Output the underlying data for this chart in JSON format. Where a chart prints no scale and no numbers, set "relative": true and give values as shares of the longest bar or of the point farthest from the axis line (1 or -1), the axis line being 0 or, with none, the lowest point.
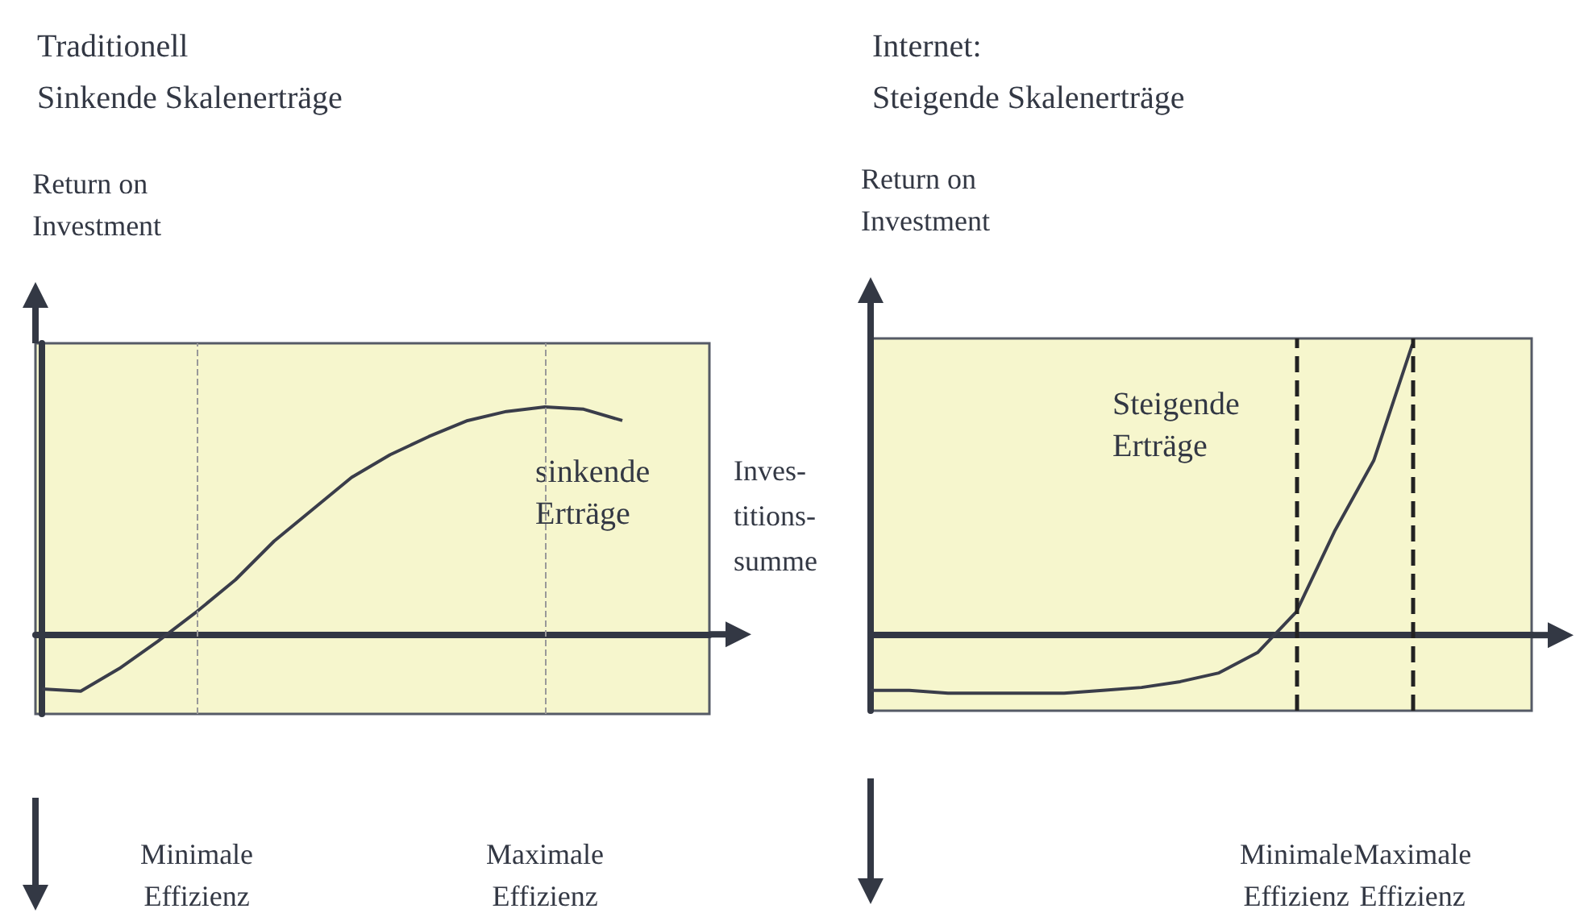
{
  "chart_data": [
    {
      "type": "line",
      "title": "Traditionell",
      "subtitle": "Sinkende Skalenerträge",
      "ylabel": "Return on Investment",
      "xlabel": "Inves-\ntitions-\nsumme",
      "relative": true,
      "categories": [
        null,
        null,
        null,
        null,
        "Minimale Effizienz",
        null,
        null,
        null,
        null,
        null,
        null,
        null,
        null,
        "Maximale Effizienz",
        null,
        null
      ],
      "series": [
        {
          "color": "#3a3d4a",
          "values": [
            -0.24,
            -0.25,
            -0.15,
            -0.03,
            0.1,
            0.24,
            0.41,
            0.55,
            0.69,
            0.79,
            0.87,
            0.94,
            0.98,
            1.0,
            0.99,
            0.94
          ]
        }
      ],
      "ref_lines": [
        {
          "axis": "x",
          "value": "Minimale Effizienz",
          "color": "#999999",
          "line_style": "dashed"
        },
        {
          "axis": "x",
          "value": "Maximale Effizienz",
          "color": "#999999",
          "line_style": "dashed"
        }
      ],
      "annotations": [
        "sinkende Erträge"
      ]
    },
    {
      "type": "line",
      "title": "Internet:",
      "subtitle": "Steigende Skalenerträge",
      "ylabel": "Return on Investment",
      "relative": true,
      "categories": [
        null,
        null,
        null,
        null,
        null,
        null,
        null,
        null,
        null,
        null,
        null,
        "Minimale Effizienz",
        null,
        null,
        "Maximale Effizienz"
      ],
      "series": [
        {
          "color": "#3a3d4a",
          "values": [
            -0.19,
            -0.19,
            -0.2,
            -0.2,
            -0.2,
            -0.2,
            -0.19,
            -0.18,
            -0.16,
            -0.13,
            -0.06,
            0.08,
            0.36,
            0.6,
            1.0
          ]
        }
      ],
      "ref_lines": [
        {
          "axis": "x",
          "value": "Minimale Effizienz",
          "color": "#222222",
          "line_style": "dashed"
        },
        {
          "axis": "x",
          "value": "Maximale Effizienz",
          "color": "#222222",
          "line_style": "dashed"
        }
      ],
      "annotations": [
        "Steigende Erträge"
      ]
    }
  ]
}
